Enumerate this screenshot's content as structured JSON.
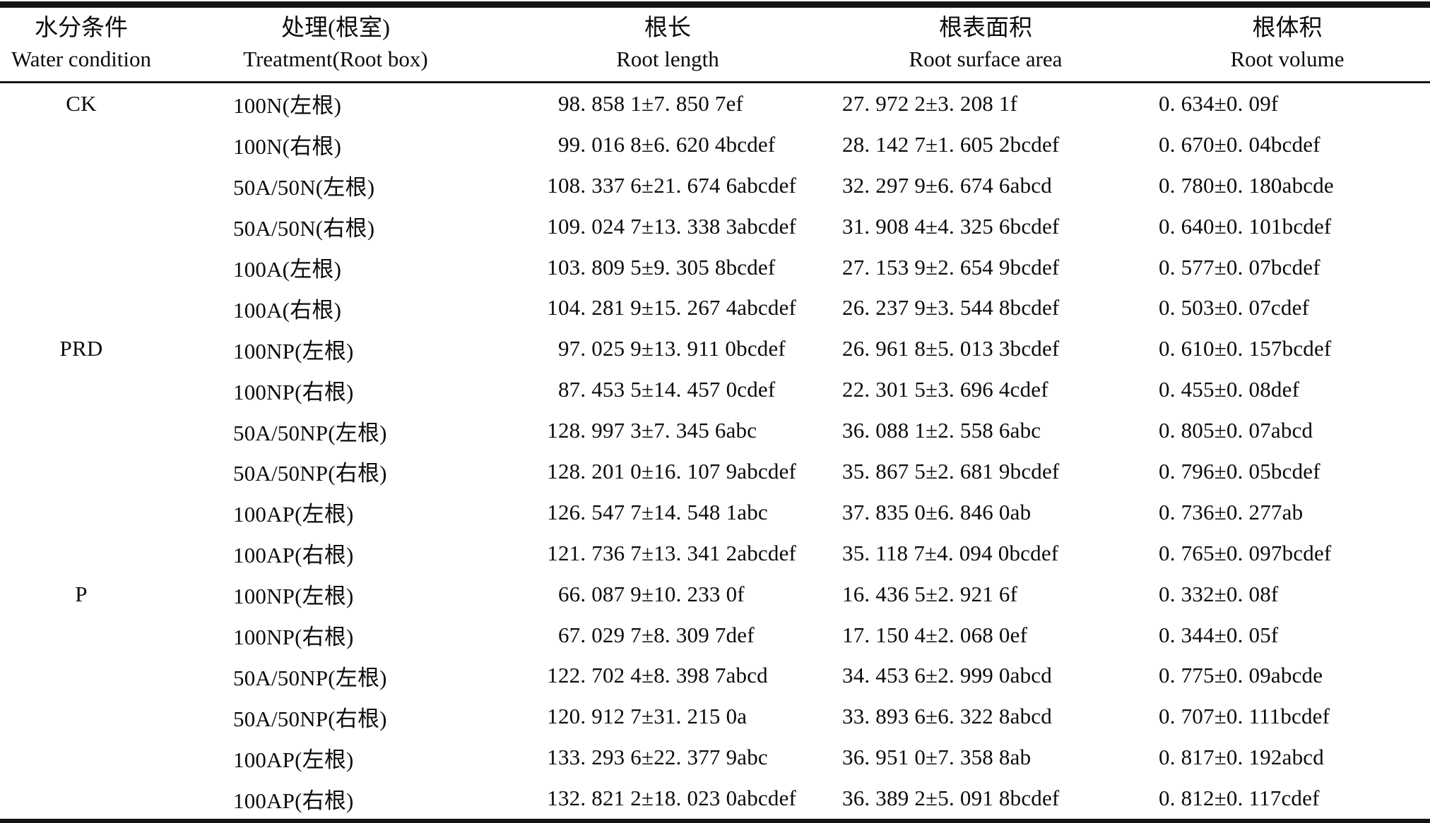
{
  "meta": {
    "ink_color": "#0b0b0b",
    "rule_color": "#141414",
    "background_color": "#ffffff"
  },
  "table": {
    "columns": [
      {
        "zh": "水分条件",
        "en": "Water condition"
      },
      {
        "zh": "处理(根室)",
        "en": "Treatment(Root box)"
      },
      {
        "zh": "根长",
        "en": "Root length"
      },
      {
        "zh": "根表面积",
        "en": "Root surface area"
      },
      {
        "zh": "根体积",
        "en": "Root volume"
      }
    ],
    "rows": [
      {
        "water": "CK",
        "treatment": "100N(左根)",
        "root_length": "98. 858 1±7. 850 7ef",
        "root_surface_area": "27. 972 2±3. 208 1f",
        "root_volume": "0. 634±0. 09f"
      },
      {
        "water": "",
        "treatment": "100N(右根)",
        "root_length": "99. 016 8±6. 620 4bcdef",
        "root_surface_area": "28. 142 7±1. 605 2bcdef",
        "root_volume": "0. 670±0. 04bcdef"
      },
      {
        "water": "",
        "treatment": "50A/50N(左根)",
        "root_length": "108. 337 6±21. 674 6abcdef",
        "root_surface_area": "32. 297 9±6. 674 6abcd",
        "root_volume": "0. 780±0. 180abcde"
      },
      {
        "water": "",
        "treatment": "50A/50N(右根)",
        "root_length": "109. 024 7±13. 338 3abcdef",
        "root_surface_area": "31. 908 4±4. 325 6bcdef",
        "root_volume": "0. 640±0. 101bcdef"
      },
      {
        "water": "",
        "treatment": "100A(左根)",
        "root_length": "103. 809 5±9. 305 8bcdef",
        "root_surface_area": "27. 153 9±2. 654 9bcdef",
        "root_volume": "0. 577±0. 07bcdef"
      },
      {
        "water": "",
        "treatment": "100A(右根)",
        "root_length": "104. 281 9±15. 267 4abcdef",
        "root_surface_area": "26. 237 9±3. 544 8bcdef",
        "root_volume": "0. 503±0. 07cdef"
      },
      {
        "water": "PRD",
        "treatment": "100NP(左根)",
        "root_length": "97. 025 9±13. 911 0bcdef",
        "root_surface_area": "26. 961 8±5. 013 3bcdef",
        "root_volume": "0. 610±0. 157bcdef"
      },
      {
        "water": "",
        "treatment": "100NP(右根)",
        "root_length": "87. 453 5±14. 457 0cdef",
        "root_surface_area": "22. 301 5±3. 696 4cdef",
        "root_volume": "0. 455±0. 08def"
      },
      {
        "water": "",
        "treatment": "50A/50NP(左根)",
        "root_length": "128. 997 3±7. 345 6abc",
        "root_surface_area": "36. 088 1±2. 558 6abc",
        "root_volume": "0. 805±0. 07abcd"
      },
      {
        "water": "",
        "treatment": "50A/50NP(右根)",
        "root_length": "128. 201 0±16. 107 9abcdef",
        "root_surface_area": "35. 867 5±2. 681 9bcdef",
        "root_volume": "0. 796±0. 05bcdef"
      },
      {
        "water": "",
        "treatment": "100AP(左根)",
        "root_length": "126. 547 7±14. 548 1abc",
        "root_surface_area": "37. 835 0±6. 846 0ab",
        "root_volume": "0. 736±0. 277ab"
      },
      {
        "water": "",
        "treatment": "100AP(右根)",
        "root_length": "121. 736 7±13. 341 2abcdef",
        "root_surface_area": "35. 118 7±4. 094 0bcdef",
        "root_volume": "0. 765±0. 097bcdef"
      },
      {
        "water": "P",
        "treatment": "100NP(左根)",
        "root_length": "66. 087 9±10. 233 0f",
        "root_surface_area": "16. 436 5±2. 921 6f",
        "root_volume": "0. 332±0. 08f"
      },
      {
        "water": "",
        "treatment": "100NP(右根)",
        "root_length": "67. 029 7±8. 309 7def",
        "root_surface_area": "17. 150 4±2. 068 0ef",
        "root_volume": "0. 344±0. 05f"
      },
      {
        "water": "",
        "treatment": "50A/50NP(左根)",
        "root_length": "122. 702 4±8. 398 7abcd",
        "root_surface_area": "34. 453 6±2. 999 0abcd",
        "root_volume": "0. 775±0. 09abcde"
      },
      {
        "water": "",
        "treatment": "50A/50NP(右根)",
        "root_length": "120. 912 7±31. 215 0a",
        "root_surface_area": "33. 893 6±6. 322 8abcd",
        "root_volume": "0. 707±0. 111bcdef"
      },
      {
        "water": "",
        "treatment": "100AP(左根)",
        "root_length": "133. 293 6±22. 377 9abc",
        "root_surface_area": "36. 951 0±7. 358 8ab",
        "root_volume": "0. 817±0. 192abcd"
      },
      {
        "water": "",
        "treatment": "100AP(右根)",
        "root_length": "132. 821 2±18. 023 0abcdef",
        "root_surface_area": "36. 389 2±5. 091 8bcdef",
        "root_volume": "0. 812±0. 117cdef"
      }
    ]
  }
}
